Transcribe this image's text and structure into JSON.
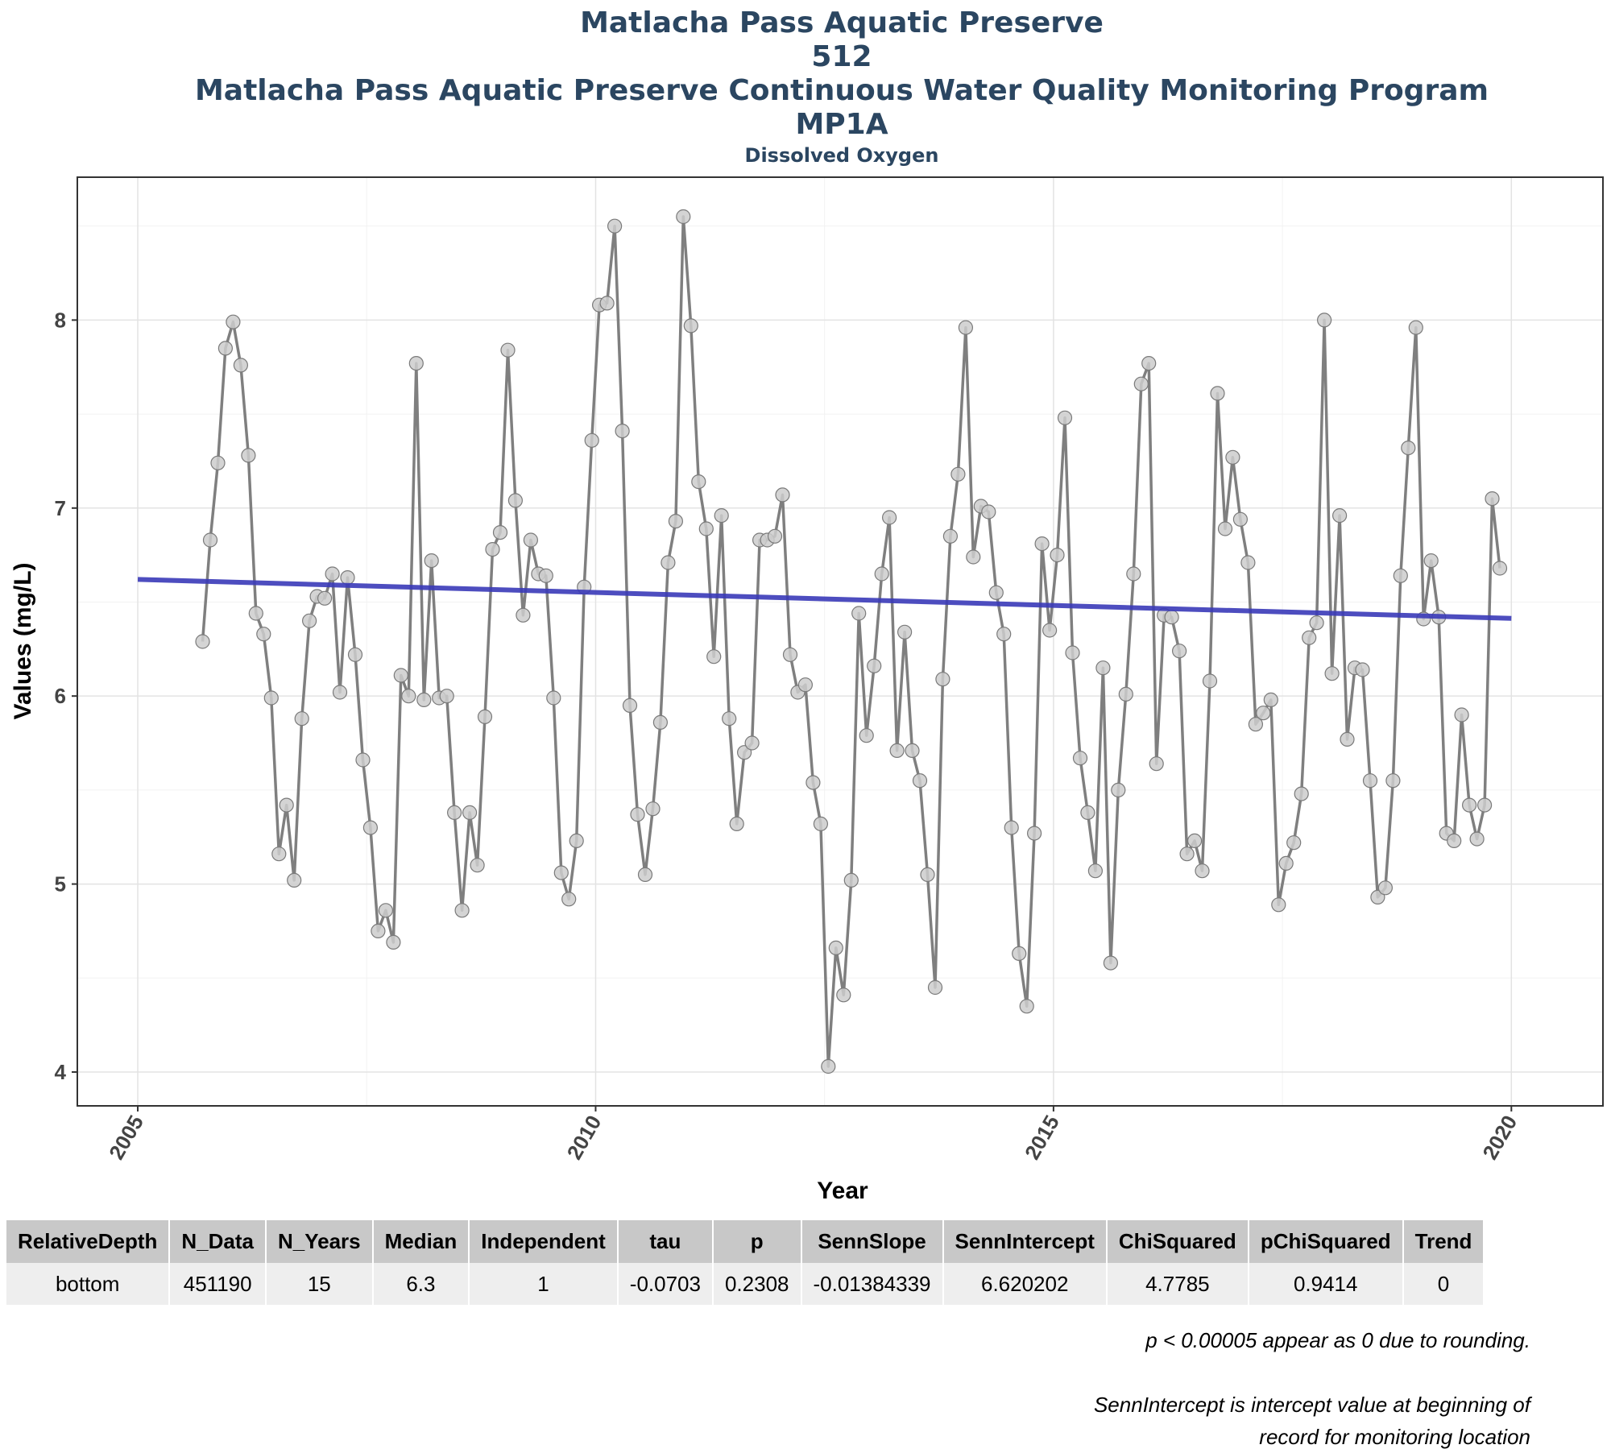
{
  "header": {
    "line1": "Matlacha Pass Aquatic Preserve",
    "line2": "512",
    "line3": "Matlacha Pass Aquatic Preserve Continuous Water Quality Monitoring Program",
    "line4": "MP1A",
    "subtitle": "Dissolved Oxygen"
  },
  "chart_data": {
    "type": "line",
    "title": "Matlacha Pass Aquatic Preserve 512 Matlacha Pass Aquatic Preserve Continuous Water Quality Monitoring Program MP1A",
    "subtitle": "Dissolved Oxygen",
    "xlabel": "Year",
    "ylabel": "Values (mg/L)",
    "xlim": [
      2004.34,
      2021.0
    ],
    "ylim": [
      3.82,
      8.76
    ],
    "x_ticks": [
      2005,
      2010,
      2015,
      2020
    ],
    "y_ticks": [
      4,
      5,
      6,
      7,
      8
    ],
    "grid": true,
    "series": [
      {
        "color": "#7f7f7f",
        "marker_fill": "#cccccc",
        "start_year": 2005.708,
        "step": 0.08333,
        "values": [
          6.29,
          6.83,
          7.24,
          7.85,
          7.99,
          7.76,
          7.28,
          6.44,
          6.33,
          5.99,
          5.16,
          5.42,
          5.02,
          5.88,
          6.4,
          6.53,
          6.52,
          6.65,
          6.02,
          6.63,
          6.22,
          5.66,
          5.3,
          4.75,
          4.86,
          4.69,
          6.11,
          6.0,
          7.77,
          5.98,
          6.72,
          5.99,
          6.0,
          5.38,
          4.86,
          5.38,
          5.1,
          5.89,
          6.78,
          6.87,
          7.84,
          7.04,
          6.43,
          6.83,
          6.65,
          6.64,
          5.99,
          5.06,
          4.92,
          5.23,
          6.58,
          7.36,
          8.08,
          8.09,
          8.5,
          7.41,
          5.95,
          5.37,
          5.05,
          5.4,
          5.86,
          6.71,
          6.93,
          8.55,
          7.97,
          7.14,
          6.89,
          6.21,
          6.96,
          5.88,
          5.32,
          5.7,
          5.75,
          6.83,
          6.83,
          6.85,
          7.07,
          6.22,
          6.02,
          6.06,
          5.54,
          5.32,
          4.03,
          4.66,
          4.41,
          5.02,
          6.44,
          5.79,
          6.16,
          6.65,
          6.95,
          5.71,
          6.34,
          5.71,
          5.55,
          5.05,
          4.45,
          6.09,
          6.85,
          7.18,
          7.96,
          6.74,
          7.01,
          6.98,
          6.55,
          6.33,
          5.3,
          4.63,
          4.35,
          5.27,
          6.81,
          6.35,
          6.75,
          7.48,
          6.23,
          5.67,
          5.38,
          5.07,
          6.15,
          4.58,
          5.5,
          6.01,
          6.65,
          7.66,
          7.77,
          5.64,
          6.43,
          6.42,
          6.24,
          5.16,
          5.23,
          5.07,
          6.08,
          7.61,
          6.89,
          7.27,
          6.94,
          6.71,
          5.85,
          5.91,
          5.98,
          4.89,
          5.11,
          5.22,
          5.48,
          6.31,
          6.39,
          8.0,
          6.12,
          6.96,
          5.77,
          6.15,
          6.14,
          5.55,
          4.93,
          4.98,
          5.55,
          6.64,
          7.32,
          7.96,
          6.41,
          6.72,
          6.42,
          5.27,
          5.23,
          5.9,
          5.42,
          5.24,
          5.42,
          7.05,
          6.68
        ]
      },
      {
        "name": "SennSlope trend",
        "color": "#3a3ab8",
        "x": [
          2005.0,
          2020.0
        ],
        "values": [
          6.620202,
          6.413
        ]
      }
    ]
  },
  "stats_table": {
    "headers": [
      "RelativeDepth",
      "N_Data",
      "N_Years",
      "Median",
      "Independent",
      "tau",
      "p",
      "SennSlope",
      "SennIntercept",
      "ChiSquared",
      "pChiSquared",
      "Trend"
    ],
    "row": [
      "bottom",
      "451190",
      "15",
      "6.3",
      "1",
      "-0.0703",
      "0.2308",
      "-0.01384339",
      "6.620202",
      "4.7785",
      "0.9414",
      "0"
    ]
  },
  "notes": {
    "rounding": "p < 0.00005 appear as 0 due to rounding.",
    "intercept_line1": "SennIntercept is intercept value at beginning of",
    "intercept_line2": "record for monitoring location"
  }
}
